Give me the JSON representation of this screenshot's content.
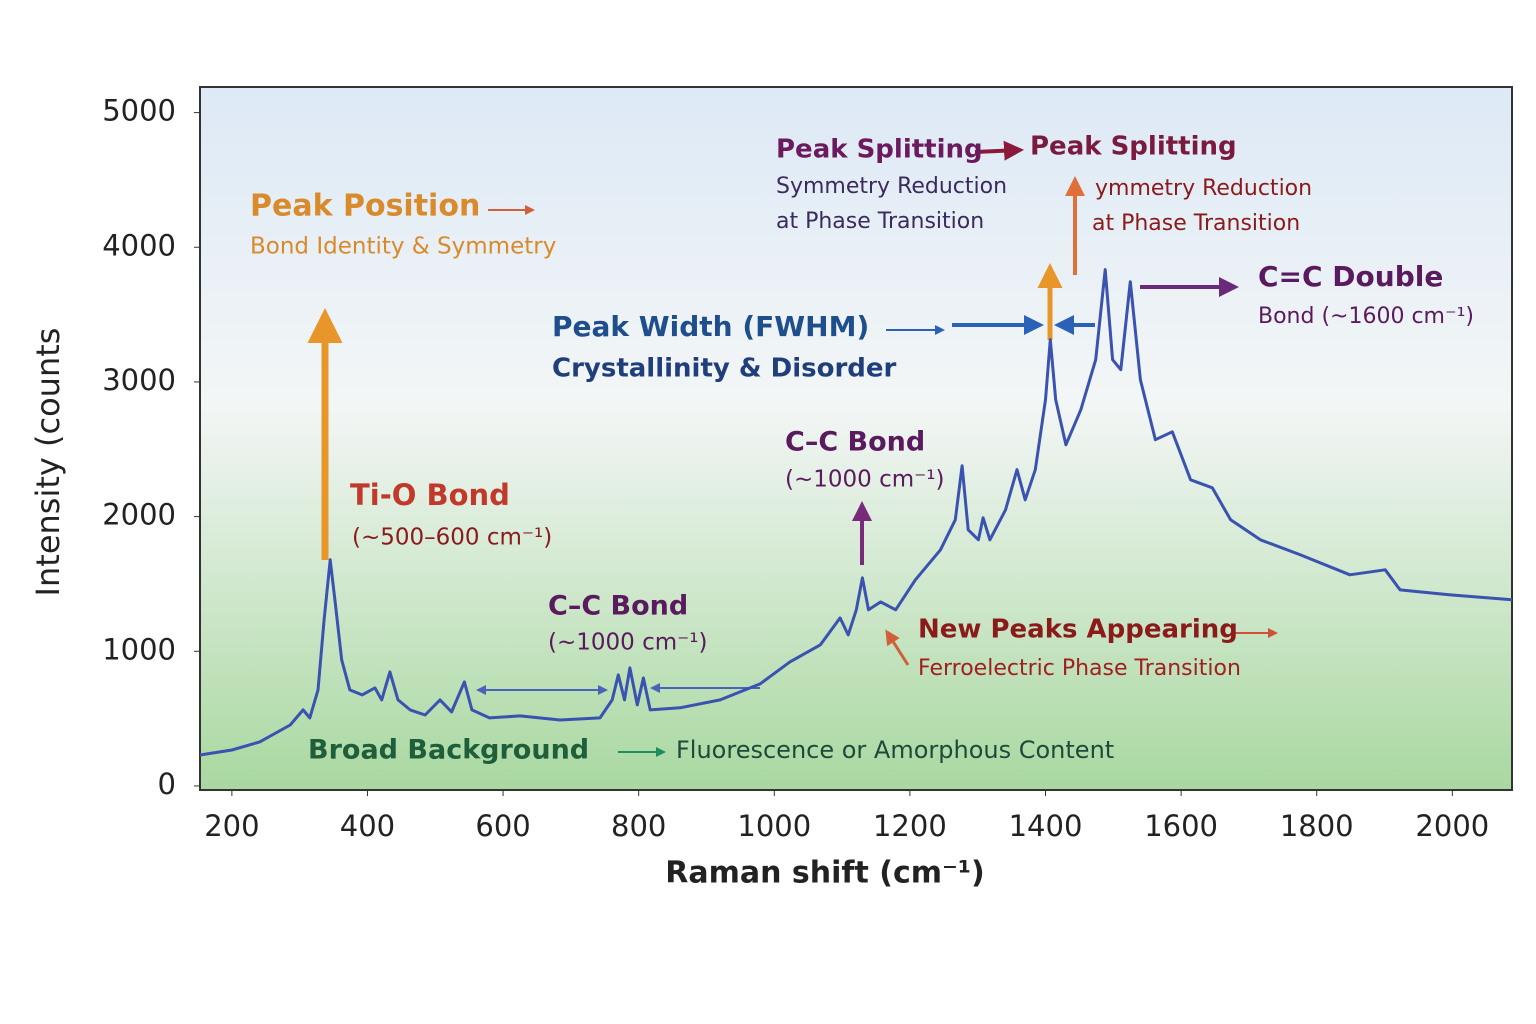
{
  "chart_data": {
    "type": "line",
    "xlabel": "Raman shift (cm⁻¹)",
    "ylabel": "Intensity (counts",
    "xlim": [
      153,
      2088
    ],
    "ylim": [
      -30,
      5190
    ],
    "xticks": [
      200,
      400,
      600,
      800,
      1000,
      1200,
      1400,
      1600,
      1800,
      2000
    ],
    "yticks": [
      0,
      1000,
      2000,
      3000,
      4000,
      5000
    ],
    "color": "#3a52b0",
    "x": [
      153,
      200,
      241,
      286,
      305,
      315,
      327,
      336,
      345,
      352,
      362,
      374,
      392,
      411,
      421,
      433,
      445,
      463,
      485,
      507,
      524,
      543,
      554,
      580,
      625,
      684,
      743,
      761,
      770,
      779,
      787,
      798,
      807,
      817,
      861,
      920,
      979,
      1023,
      1068,
      1097,
      1109,
      1121,
      1130,
      1139,
      1157,
      1179,
      1208,
      1245,
      1267,
      1277,
      1286,
      1301,
      1308,
      1318,
      1341,
      1358,
      1370,
      1385,
      1400,
      1407,
      1415,
      1430,
      1452,
      1474,
      1488,
      1499,
      1511,
      1525,
      1540,
      1562,
      1587,
      1614,
      1646,
      1673,
      1717,
      1776,
      1849,
      1901,
      1923,
      1997,
      2088
    ],
    "values": [
      230,
      267,
      327,
      453,
      565,
      505,
      713,
      1233,
      1679,
      1382,
      936,
      713,
      676,
      728,
      639,
      847,
      639,
      565,
      527,
      639,
      550,
      773,
      565,
      505,
      520,
      490,
      505,
      639,
      825,
      639,
      877,
      602,
      802,
      565,
      580,
      639,
      758,
      921,
      1048,
      1248,
      1122,
      1308,
      1545,
      1308,
      1367,
      1308,
      1530,
      1753,
      1976,
      2377,
      1902,
      1828,
      1991,
      1828,
      2050,
      2348,
      2125,
      2348,
      2868,
      3314,
      2868,
      2533,
      2793,
      3165,
      3834,
      3165,
      3091,
      3744,
      3016,
      2571,
      2630,
      2273,
      2214,
      1976,
      1828,
      1716,
      1568,
      1605,
      1456,
      1419,
      1382
    ],
    "annotations": [
      {
        "lines": [
          "Peak Position",
          "Bond Identity & Symmetry"
        ]
      },
      {
        "lines": [
          "Ti-O Bond",
          "(~500–600 cm⁻¹)"
        ]
      },
      {
        "lines": [
          "C–C Bond",
          "(~1000 cm⁻¹)"
        ]
      },
      {
        "lines": [
          "C–C Bond",
          "(~1000 cm⁻¹)"
        ]
      },
      {
        "lines": [
          "Peak Width (FWHM)",
          "Crystallinity & Disorder"
        ]
      },
      {
        "lines": [
          "Peak Splitting",
          "Symmetry Reduction",
          "at Phase Transition"
        ]
      },
      {
        "lines": [
          "Peak Splitting",
          "ymmetry Reduction",
          "at Phase Transition"
        ]
      },
      {
        "lines": [
          "C=C Double",
          "Bond (~1600 cm⁻¹)"
        ]
      },
      {
        "lines": [
          "New Peaks Appearing",
          "Ferroelectric Phase Transition"
        ]
      },
      {
        "lines": [
          "Broad Background",
          "Fluorescence or Amorphous Content"
        ]
      }
    ]
  }
}
